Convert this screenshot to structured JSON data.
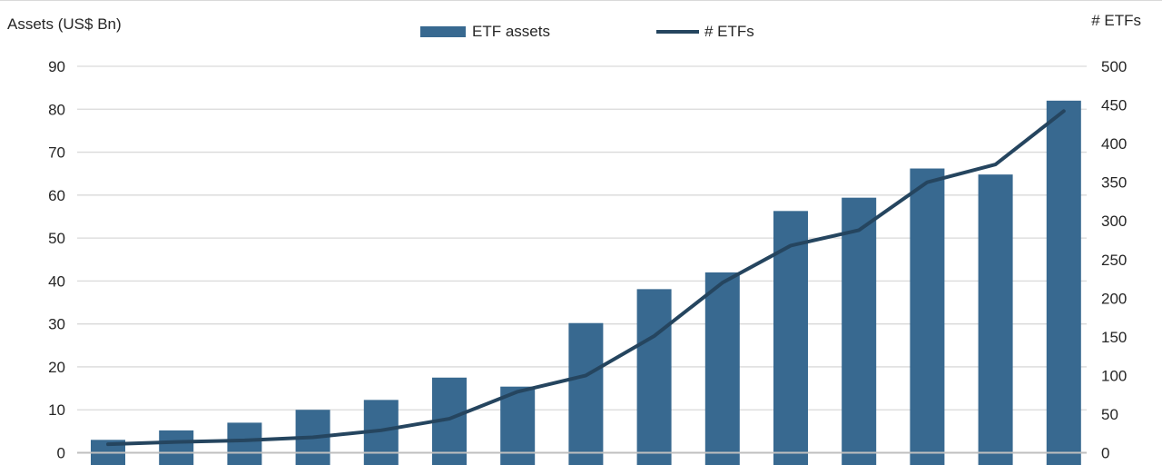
{
  "header": {
    "left_axis_title": "Assets (US$ Bn)",
    "right_axis_title": "# ETFs"
  },
  "legend": [
    {
      "label": "ETF assets",
      "marker": "bar-swatch"
    },
    {
      "label": "# ETFs",
      "marker": "line-swatch"
    }
  ],
  "colors": {
    "bar_fill": "#386990",
    "line_stroke": "#25455F",
    "gridline": "#D9D9D9",
    "axis_line": "#BFBFBF",
    "text": "#262626"
  },
  "chart_data": {
    "type": "bar",
    "subtype": "combo-bar-line-dual-axis",
    "title": "",
    "categories": [],
    "n_points": 15,
    "series": [
      {
        "name": "ETF assets",
        "type": "bar",
        "axis": "left",
        "values": [
          3.0,
          5.2,
          7.0,
          10.0,
          12.3,
          17.5,
          15.4,
          30.2,
          38.1,
          42.0,
          56.3,
          59.4,
          66.2,
          64.8,
          82.0
        ]
      },
      {
        "name": "# ETFs",
        "type": "line",
        "axis": "right",
        "values": [
          11,
          14,
          16,
          20,
          29,
          44,
          79,
          100,
          151,
          220,
          268,
          288,
          350,
          373,
          442
        ]
      }
    ],
    "left_axis": {
      "title": "Assets (US$ Bn)",
      "min": 0,
      "max": 90,
      "tick_step": 10,
      "ticks": [
        90,
        80,
        70,
        60,
        50,
        40,
        30,
        20,
        10,
        0
      ]
    },
    "right_axis": {
      "title": "# ETFs",
      "min": 0,
      "max": 500,
      "tick_step": 50,
      "ticks": [
        500,
        450,
        400,
        350,
        300,
        250,
        200,
        150,
        100,
        50,
        0
      ]
    },
    "grid": true,
    "legend_position": "top-center",
    "x_axis_labels_visible": false
  }
}
